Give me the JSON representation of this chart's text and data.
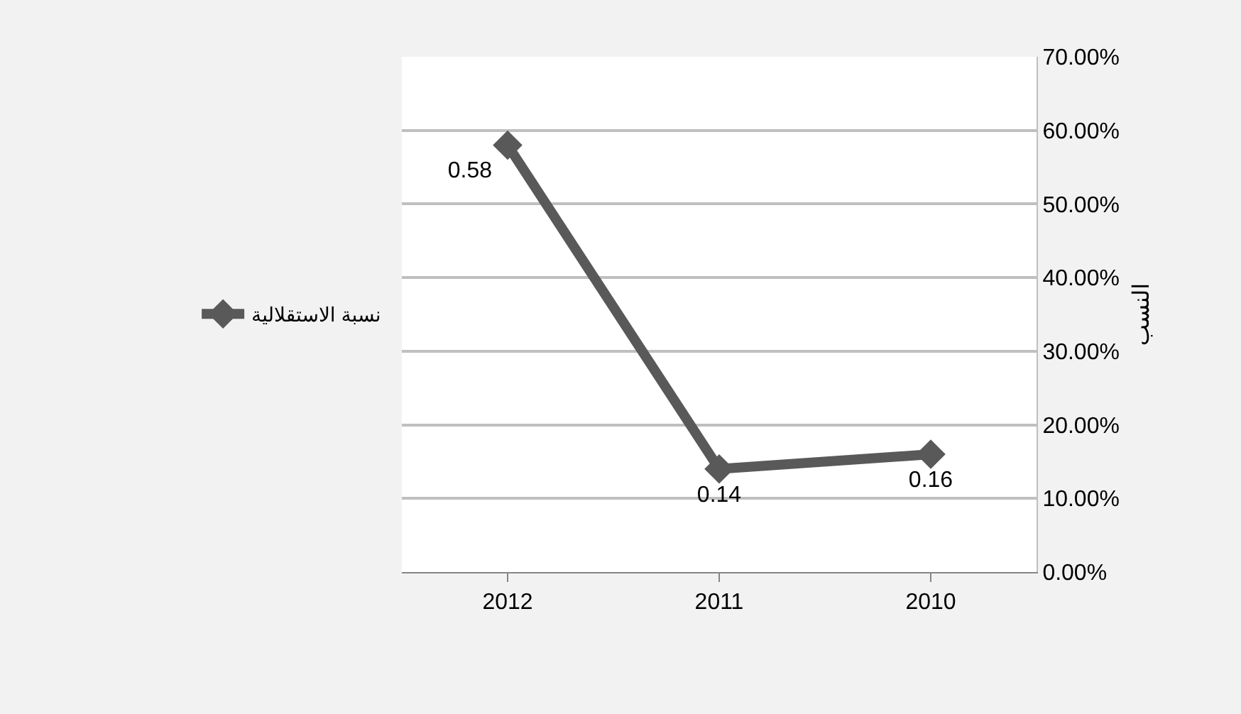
{
  "chart_data": {
    "type": "line",
    "ylabel": "النسب",
    "categories": [
      "2012",
      "2011",
      "2010"
    ],
    "series": [
      {
        "name": "نسبة الاستقلالية",
        "color": "#595959",
        "values": [
          0.58,
          0.14,
          0.16
        ]
      }
    ],
    "ylim": [
      0,
      0.7
    ],
    "yticks": [
      {
        "value": 0,
        "label": "0.00%"
      },
      {
        "value": 0.1,
        "label": "10.00%"
      },
      {
        "value": 0.2,
        "label": "20.00%"
      },
      {
        "value": 0.3,
        "label": "30.00%"
      },
      {
        "value": 0.4,
        "label": "40.00%"
      },
      {
        "value": 0.5,
        "label": "50.00%"
      },
      {
        "value": 0.6,
        "label": "60.00%"
      },
      {
        "value": 0.7,
        "label": "70.00%"
      }
    ],
    "grid": "y",
    "legend": "left",
    "marker": "diamond",
    "line_style": "solid",
    "data_labels": true
  }
}
